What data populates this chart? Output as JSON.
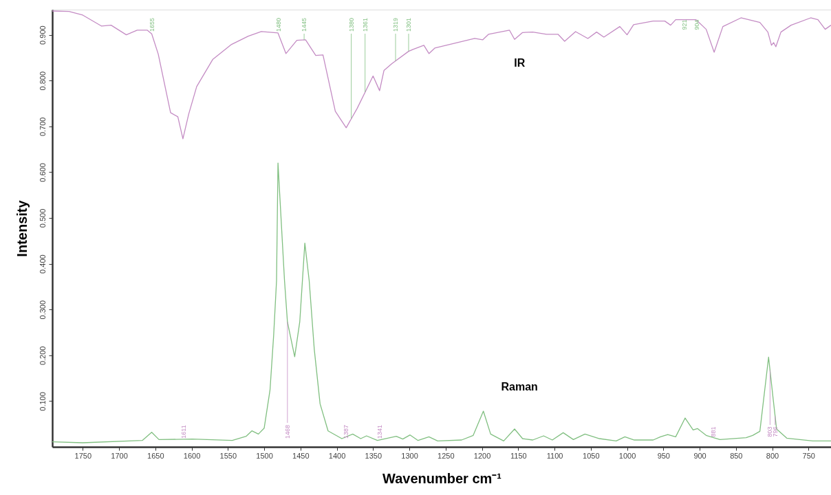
{
  "chart_data": {
    "type": "line",
    "xlabel": "Wavenumber cm⁻¹",
    "ylabel": "Intensity",
    "xlim": [
      1792,
      719
    ],
    "ylim": [
      0,
      0.955
    ],
    "xticks": [
      1750,
      1700,
      1650,
      1600,
      1550,
      1500,
      1450,
      1400,
      1350,
      1300,
      1250,
      1200,
      1150,
      1100,
      1050,
      1000,
      950,
      900,
      850,
      800,
      750
    ],
    "yticks": [
      {
        "value": 0.1,
        "label": "0.100"
      },
      {
        "value": 0.2,
        "label": "0.200"
      },
      {
        "value": 0.3,
        "label": "0.300"
      },
      {
        "value": 0.4,
        "label": "0.400"
      },
      {
        "value": 0.5,
        "label": "0.500"
      },
      {
        "value": 0.6,
        "label": "0.600"
      },
      {
        "value": 0.7,
        "label": "0.700"
      },
      {
        "value": 0.8,
        "label": "0.800"
      },
      {
        "value": 0.9,
        "label": "0.900"
      }
    ],
    "grid": false,
    "legend": false,
    "marker": "none",
    "line_style": "solid",
    "series": [
      {
        "name": "IR",
        "color": "#c48cc4",
        "x": [
          1792,
          1769,
          1750,
          1724,
          1711,
          1690,
          1675,
          1661,
          1655,
          1646,
          1629,
          1619,
          1612,
          1604,
          1593,
          1571,
          1545,
          1522,
          1504,
          1481,
          1470,
          1455,
          1443,
          1429,
          1419,
          1402,
          1387,
          1372,
          1350,
          1341,
          1335,
          1324,
          1301,
          1295,
          1280,
          1273,
          1265,
          1210,
          1199,
          1191,
          1162,
          1155,
          1144,
          1130,
          1111,
          1095,
          1086,
          1071,
          1054,
          1042,
          1032,
          1010,
          1000,
          991,
          964,
          948,
          940,
          933,
          905,
          891,
          880,
          868,
          843,
          817,
          806,
          801,
          798,
          795,
          788,
          774,
          747,
          737,
          727,
          719
        ],
        "values": [
          0.952,
          0.951,
          0.943,
          0.919,
          0.921,
          0.9,
          0.91,
          0.91,
          0.902,
          0.858,
          0.73,
          0.721,
          0.673,
          0.727,
          0.787,
          0.846,
          0.879,
          0.897,
          0.907,
          0.904,
          0.859,
          0.888,
          0.889,
          0.855,
          0.856,
          0.733,
          0.697,
          0.739,
          0.81,
          0.778,
          0.822,
          0.837,
          0.864,
          0.868,
          0.877,
          0.859,
          0.871,
          0.892,
          0.889,
          0.901,
          0.91,
          0.89,
          0.905,
          0.906,
          0.901,
          0.901,
          0.886,
          0.907,
          0.892,
          0.906,
          0.895,
          0.918,
          0.9,
          0.922,
          0.93,
          0.93,
          0.921,
          0.933,
          0.933,
          0.912,
          0.862,
          0.918,
          0.937,
          0.927,
          0.906,
          0.877,
          0.883,
          0.874,
          0.906,
          0.921,
          0.937,
          0.933,
          0.912,
          0.921
        ]
      },
      {
        "name": "Raman",
        "color": "#80bf80",
        "x": [
          1792,
          1750,
          1668,
          1655,
          1645,
          1599,
          1544,
          1525,
          1517,
          1508,
          1500,
          1492,
          1487,
          1483,
          1481,
          1472,
          1468,
          1458,
          1451,
          1444,
          1438,
          1431,
          1423,
          1412,
          1393,
          1378,
          1367,
          1359,
          1344,
          1318,
          1309,
          1299,
          1288,
          1273,
          1261,
          1228,
          1212,
          1198,
          1188,
          1170,
          1155,
          1144,
          1130,
          1115,
          1103,
          1088,
          1074,
          1058,
          1038,
          1015,
          1003,
          990,
          964,
          954,
          944,
          933,
          920,
          909,
          903,
          891,
          872,
          836,
          827,
          817,
          805,
          799,
          794,
          780,
          744,
          719
        ],
        "values": [
          0.011,
          0.009,
          0.014,
          0.032,
          0.016,
          0.017,
          0.014,
          0.023,
          0.035,
          0.028,
          0.041,
          0.124,
          0.243,
          0.363,
          0.62,
          0.363,
          0.273,
          0.197,
          0.273,
          0.445,
          0.363,
          0.213,
          0.094,
          0.035,
          0.018,
          0.028,
          0.018,
          0.024,
          0.014,
          0.023,
          0.017,
          0.026,
          0.014,
          0.022,
          0.013,
          0.015,
          0.025,
          0.078,
          0.028,
          0.013,
          0.039,
          0.018,
          0.015,
          0.024,
          0.015,
          0.031,
          0.016,
          0.028,
          0.018,
          0.013,
          0.022,
          0.015,
          0.015,
          0.022,
          0.027,
          0.022,
          0.063,
          0.037,
          0.04,
          0.025,
          0.016,
          0.02,
          0.025,
          0.034,
          0.196,
          0.109,
          0.039,
          0.019,
          0.013,
          0.013
        ]
      }
    ],
    "annotations": [
      {
        "text": "1655",
        "x": 1655,
        "y": 0.902
      },
      {
        "text": "1480",
        "x": 1480,
        "y": 0.904
      },
      {
        "text": "1445",
        "x": 1445,
        "y": 0.889
      },
      {
        "text": "1380",
        "x": 1380,
        "y": 0.717
      },
      {
        "text": "1361",
        "x": 1361,
        "y": 0.775
      },
      {
        "text": "1319",
        "x": 1319,
        "y": 0.843
      },
      {
        "text": "1301",
        "x": 1301,
        "y": 0.864
      },
      {
        "text": "921",
        "x": 921,
        "y": 0.933
      },
      {
        "text": "904",
        "x": 904,
        "y": 0.932
      },
      {
        "text": "1611",
        "x": 1611,
        "y": 0.017
      },
      {
        "text": "1468",
        "x": 1468,
        "y": 0.273
      },
      {
        "text": "1387",
        "x": 1387,
        "y": 0.022
      },
      {
        "text": "1341",
        "x": 1341,
        "y": 0.015
      },
      {
        "text": "881",
        "x": 881,
        "y": 0.02
      },
      {
        "text": "803",
        "x": 803,
        "y": 0.167
      },
      {
        "text": "796",
        "x": 796,
        "y": 0.067
      }
    ]
  }
}
